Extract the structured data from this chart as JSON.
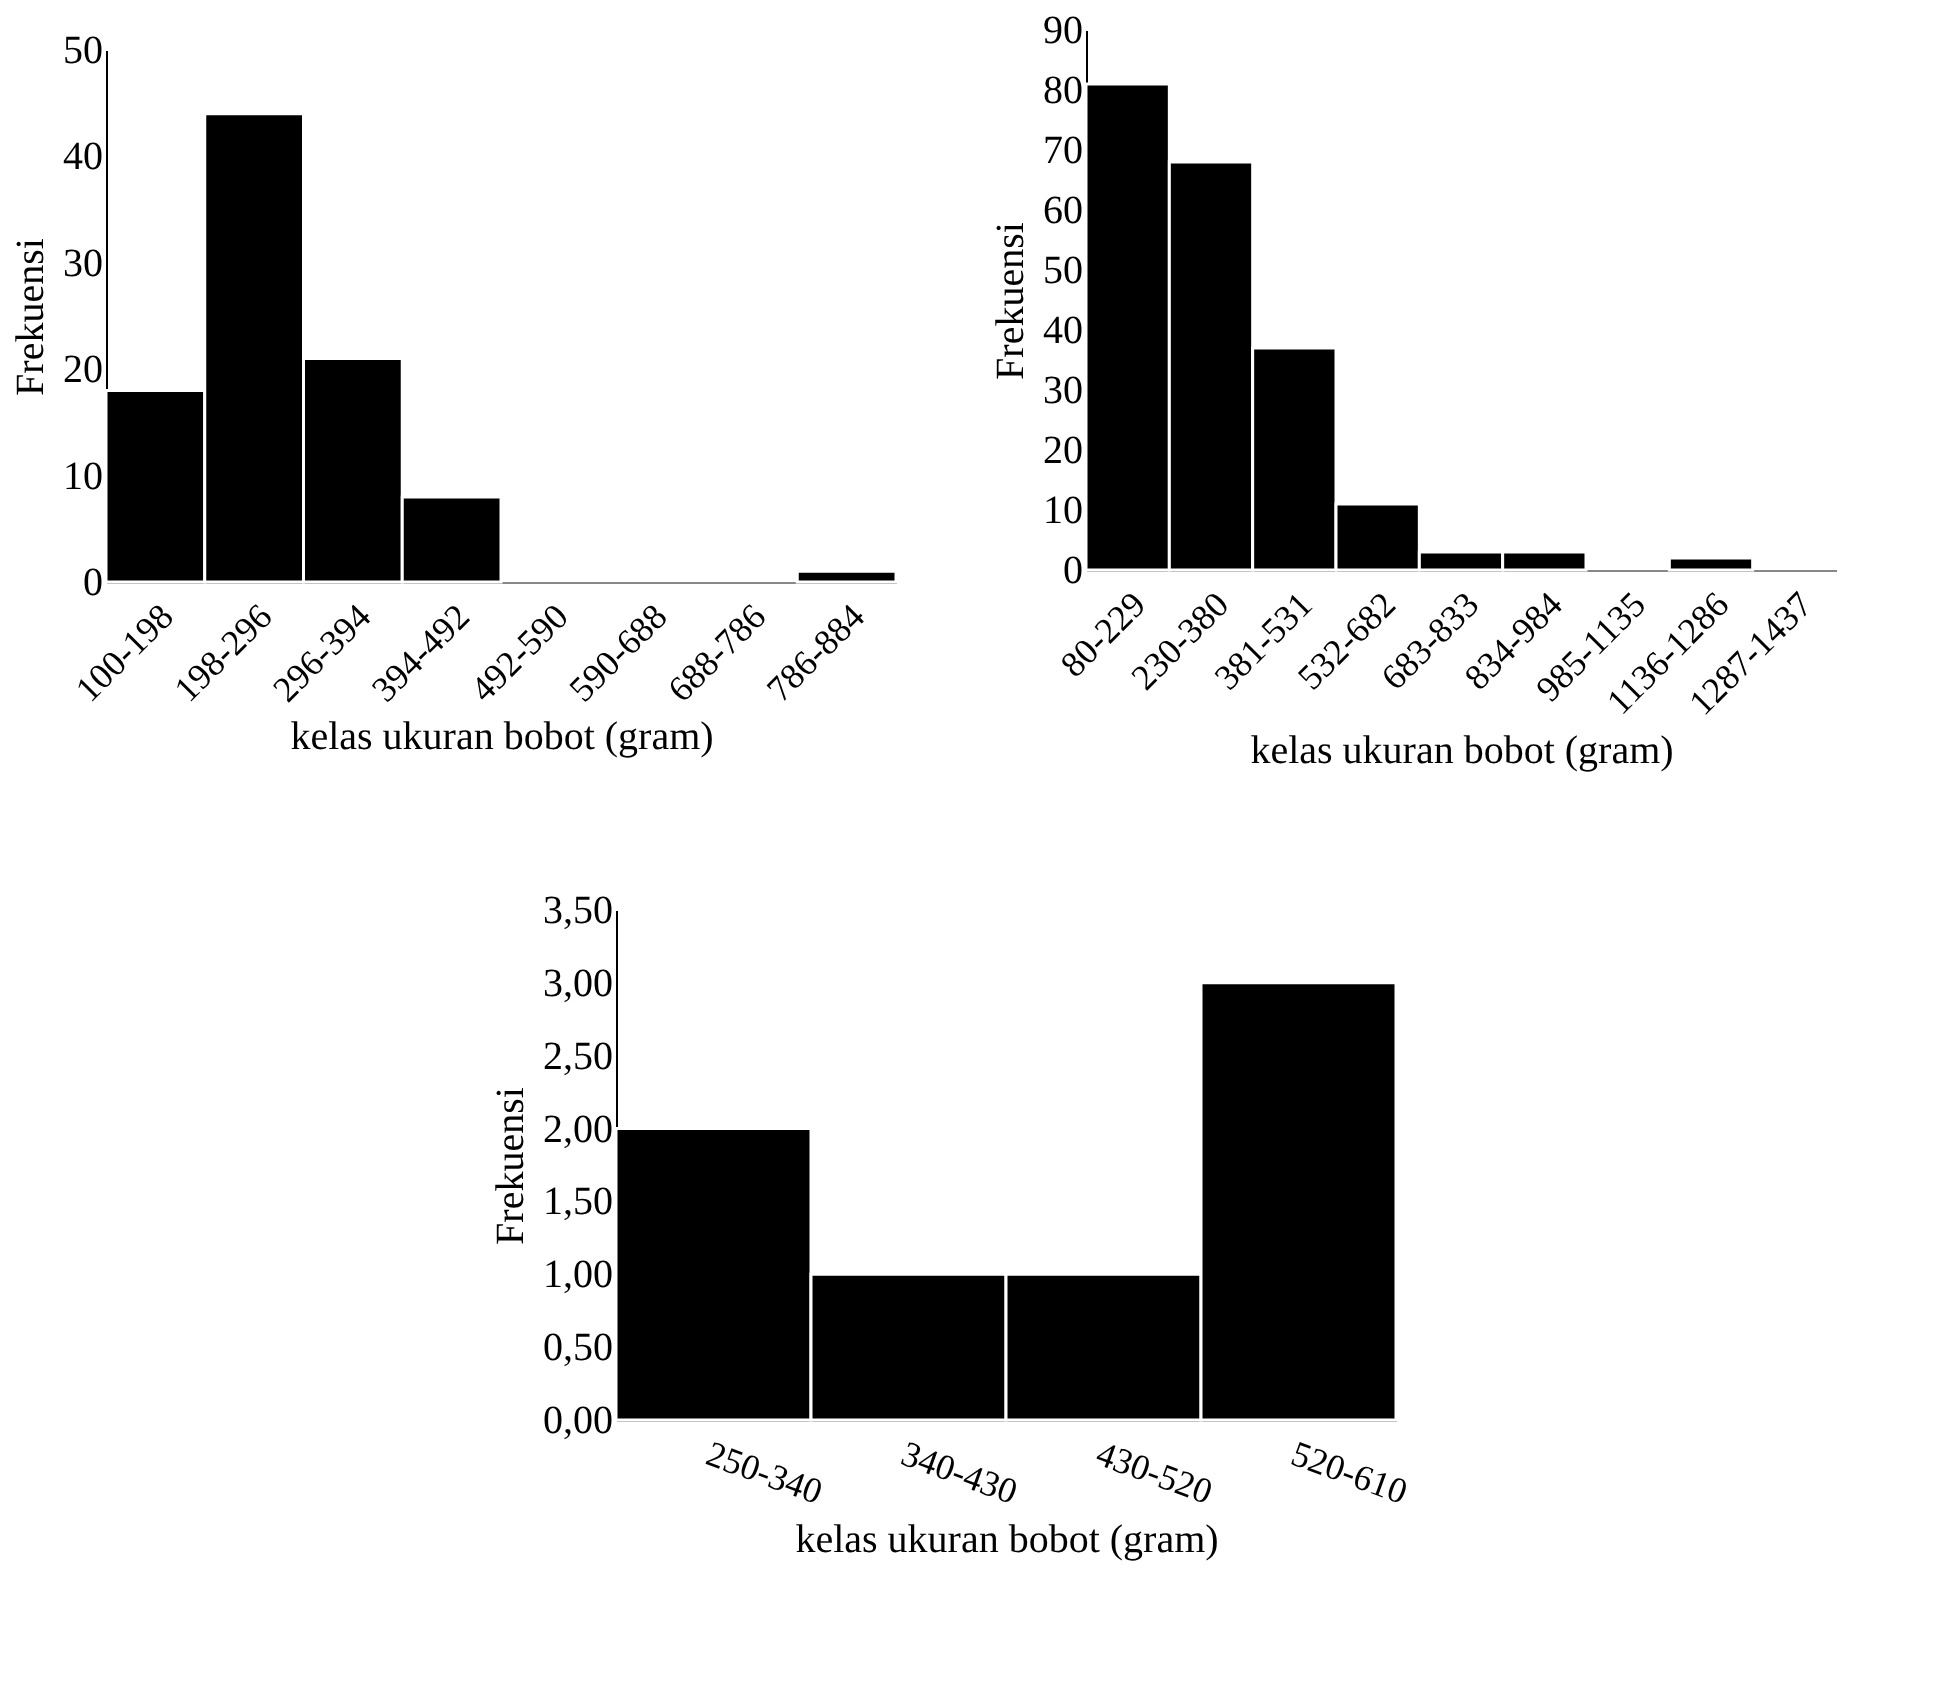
{
  "chart_data": [
    {
      "type": "bar",
      "xlabel": "kelas ukuran bobot (gram)",
      "ylabel": "Frekuensi",
      "categories": [
        "100-198",
        "198-296",
        "296-394",
        "394-492",
        "492-590",
        "590-688",
        "688-786",
        "786-884"
      ],
      "values": [
        18,
        44,
        21,
        8,
        0,
        0,
        0,
        1
      ],
      "color": "#000000",
      "ylim": [
        0,
        50
      ],
      "yticks": [
        0,
        10,
        20,
        30,
        40,
        50
      ]
    },
    {
      "type": "bar",
      "xlabel": "kelas ukuran bobot (gram)",
      "ylabel": "Frekuensi",
      "categories": [
        "80-229",
        "230-380",
        "381-531",
        "532-682",
        "683-833",
        "834-984",
        "985-1135",
        "1136-1286",
        "1287-1437"
      ],
      "values": [
        81,
        68,
        37,
        11,
        3,
        3,
        0,
        2,
        0
      ],
      "color": "#000000",
      "ylim": [
        0,
        90
      ],
      "yticks": [
        0,
        10,
        20,
        30,
        40,
        50,
        60,
        70,
        80,
        90
      ]
    },
    {
      "type": "bar",
      "xlabel": "kelas ukuran bobot (gram)",
      "ylabel": "Frekuensi",
      "categories": [
        "250-340",
        "340-430",
        "430-520",
        "520-610"
      ],
      "values": [
        2,
        1,
        1,
        3
      ],
      "color": "#000000",
      "ylim": [
        0,
        3.5
      ],
      "yticks": [
        {
          "value": 0,
          "label": "0,00"
        },
        {
          "value": 0.5,
          "label": "0,50"
        },
        {
          "value": 1,
          "label": "1,00"
        },
        {
          "value": 1.5,
          "label": "1,50"
        },
        {
          "value": 2,
          "label": "2,00"
        },
        {
          "value": 2.5,
          "label": "2,50"
        },
        {
          "value": 3,
          "label": "3,00"
        },
        {
          "value": 3.5,
          "label": "3,50"
        }
      ]
    }
  ]
}
